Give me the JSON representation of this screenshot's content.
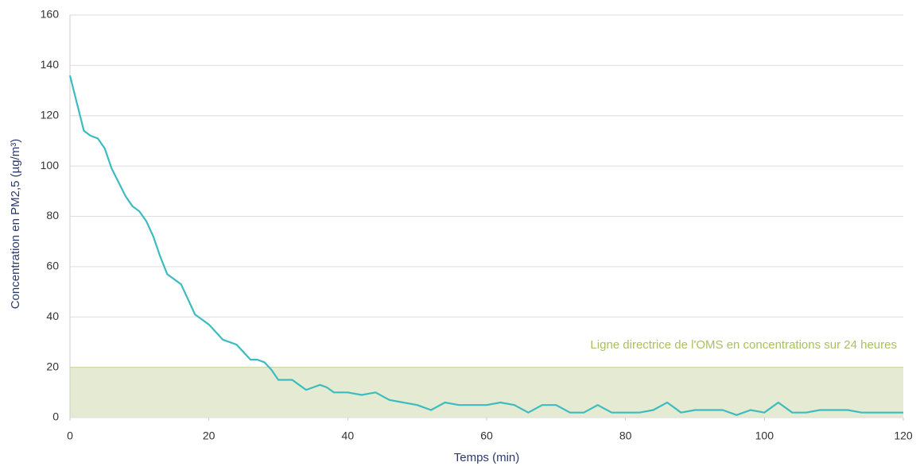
{
  "chart_data": {
    "type": "line",
    "xlabel": "Temps (min)",
    "ylabel": "Concentration en PM2,5 (µg/m³)",
    "annotation": "Ligne directrice de l'OMS en concentrations sur 24 heures",
    "band": [
      0,
      20
    ],
    "band_color": "#e5ebd2",
    "x": [
      0,
      1,
      2,
      3,
      4,
      5,
      6,
      8,
      9,
      10,
      11,
      12,
      13,
      14,
      15,
      16,
      17,
      18,
      19,
      20,
      21,
      22,
      23,
      24,
      25,
      26,
      27,
      28,
      29,
      30,
      31,
      32,
      33,
      34,
      35,
      36,
      37,
      38,
      40,
      42,
      44,
      46,
      48,
      50,
      52,
      54,
      56,
      58,
      60,
      62,
      64,
      66,
      68,
      70,
      72,
      74,
      76,
      78,
      80,
      82,
      84,
      86,
      88,
      90,
      92,
      94,
      96,
      98,
      100,
      102,
      104,
      106,
      108,
      110,
      112,
      114,
      116,
      118,
      120
    ],
    "series": [
      {
        "name": "PM2,5",
        "color": "#3dbcc0",
        "values": [
          136,
          125,
          114,
          112,
          111,
          107,
          99,
          88,
          84,
          82,
          78,
          72,
          64,
          57,
          55,
          53,
          47,
          41,
          39,
          37,
          34,
          31,
          30,
          29,
          26,
          23,
          23,
          22,
          19,
          15,
          15,
          15,
          13,
          11,
          12,
          13,
          12,
          10,
          10,
          9,
          10,
          7,
          6,
          5,
          3,
          6,
          5,
          5,
          5,
          6,
          5,
          2,
          5,
          5,
          2,
          2,
          5,
          2,
          2,
          2,
          3,
          6,
          2,
          3,
          3,
          3,
          1,
          3,
          2,
          6,
          2,
          2,
          3,
          3,
          3,
          2,
          2,
          2,
          2
        ]
      }
    ],
    "xlim": [
      0,
      120
    ],
    "xticks": [
      0,
      20,
      40,
      60,
      80,
      100,
      120
    ],
    "ylim": [
      0,
      160
    ],
    "yticks": [
      0,
      20,
      40,
      60,
      80,
      100,
      120,
      140,
      160
    ],
    "grid": true
  }
}
